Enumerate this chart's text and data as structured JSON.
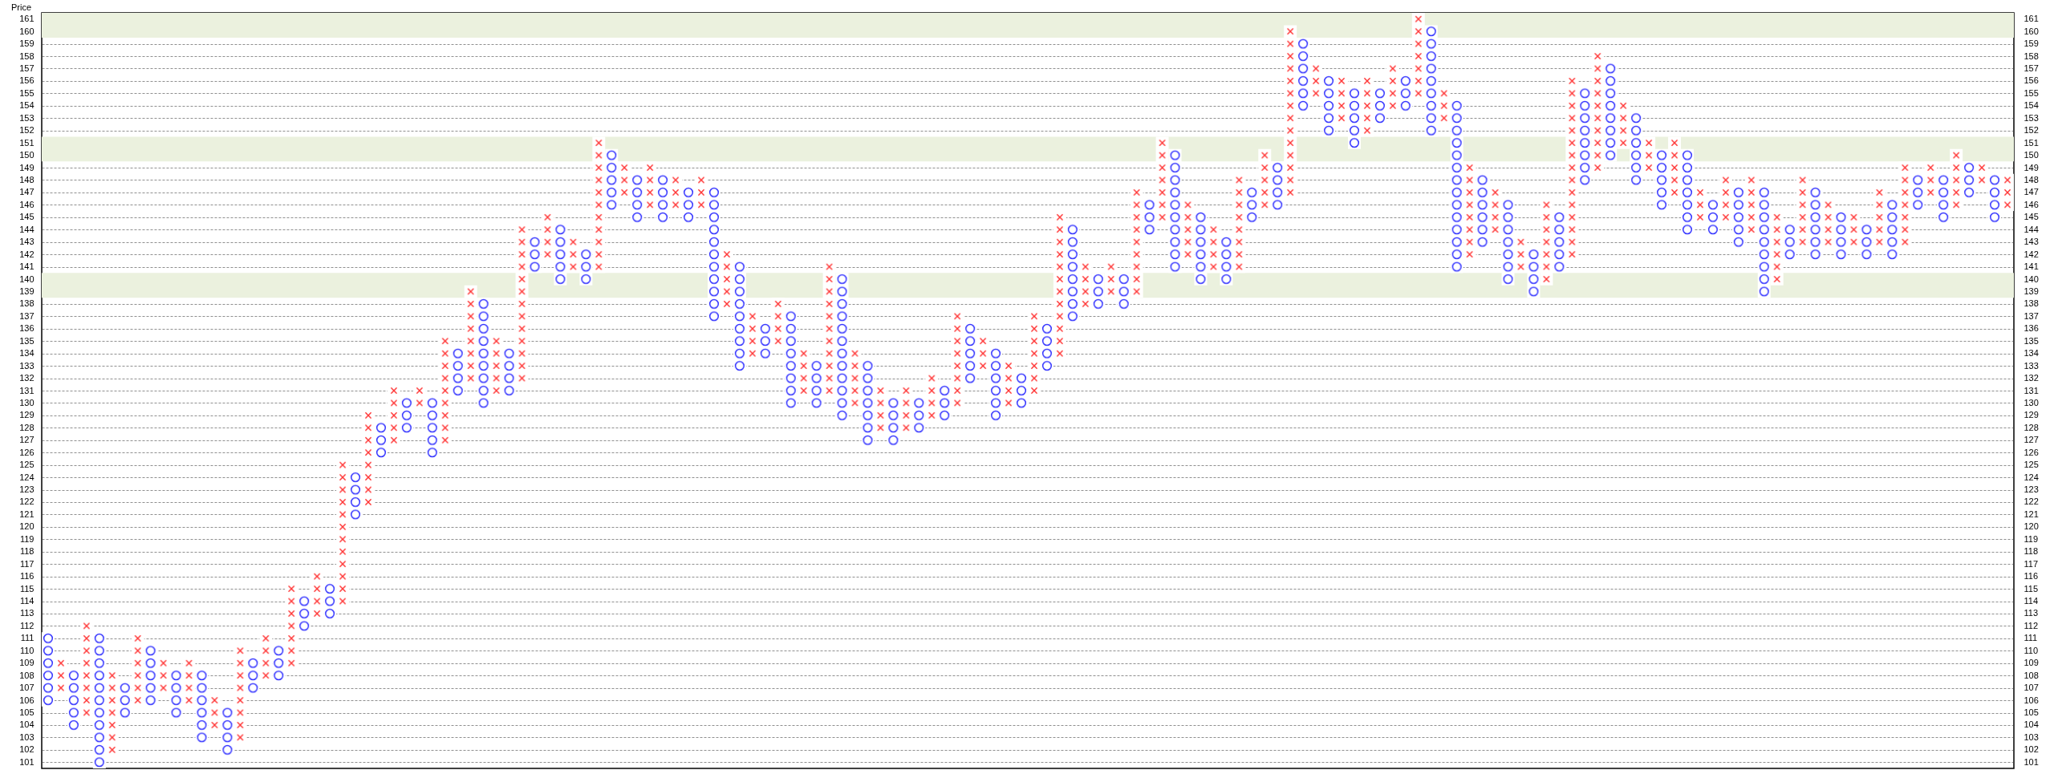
{
  "chart_data": {
    "type": "bar",
    "ylabel": "Price",
    "ylim": [
      100.5,
      161.5
    ],
    "categories": [
      null,
      null,
      null,
      null,
      null,
      null,
      null,
      null,
      null,
      null,
      null,
      null,
      null,
      null,
      null,
      null,
      null,
      null,
      null,
      null,
      null,
      null,
      null,
      null,
      null,
      null,
      null,
      null,
      null,
      null,
      null,
      null,
      null,
      null,
      null,
      null,
      null,
      null,
      null,
      null,
      null,
      null,
      null,
      null,
      null,
      null,
      null,
      null,
      null,
      null,
      null,
      null,
      null,
      null,
      null,
      null,
      null,
      null,
      null,
      null,
      null,
      null,
      null,
      null,
      null,
      null,
      null,
      null,
      null,
      null,
      null,
      null,
      null,
      null,
      null,
      null,
      null,
      null,
      null,
      null,
      null,
      null,
      null,
      null,
      null,
      null,
      null,
      null,
      null,
      null,
      null,
      null,
      null,
      null,
      null,
      null,
      null,
      null,
      null,
      null,
      null,
      null,
      null,
      null,
      null,
      null,
      null,
      null,
      null,
      null,
      null,
      null,
      null,
      null,
      null,
      null,
      null,
      null,
      null,
      null,
      null,
      null,
      null,
      null,
      null,
      null,
      null,
      null,
      null,
      null,
      null,
      null,
      null,
      null,
      null,
      null,
      null,
      null,
      null,
      null,
      null,
      null,
      null,
      null,
      null,
      null,
      null,
      null,
      null,
      null,
      null,
      null,
      null,
      null
    ],
    "yticks": [
      101,
      102,
      103,
      104,
      105,
      106,
      107,
      108,
      109,
      110,
      111,
      112,
      113,
      114,
      115,
      116,
      117,
      118,
      119,
      120,
      121,
      122,
      123,
      124,
      125,
      126,
      127,
      128,
      129,
      130,
      131,
      132,
      133,
      134,
      135,
      136,
      137,
      138,
      139,
      140,
      141,
      142,
      143,
      144,
      145,
      146,
      147,
      148,
      149,
      150,
      151,
      152,
      153,
      154,
      155,
      156,
      157,
      158,
      159,
      160,
      161
    ],
    "y2lim": [
      100.5,
      161.5
    ],
    "y2ticks": [
      101,
      102,
      103,
      104,
      105,
      106,
      107,
      108,
      109,
      110,
      111,
      112,
      113,
      114,
      115,
      116,
      117,
      118,
      119,
      120,
      121,
      122,
      123,
      124,
      125,
      126,
      127,
      128,
      129,
      130,
      131,
      132,
      133,
      134,
      135,
      136,
      137,
      138,
      139,
      140,
      141,
      142,
      143,
      144,
      145,
      146,
      147,
      148,
      149,
      150,
      151,
      152,
      153,
      154,
      155,
      156,
      157,
      158,
      159,
      160,
      161
    ],
    "tick_labels": "y",
    "grid": "y",
    "bands": [
      {
        "axis": "y",
        "from": 159.5,
        "to": 161.5,
        "color": "#ebf1de"
      },
      {
        "axis": "y",
        "from": 149.5,
        "to": 151.5,
        "color": "#ebf1de"
      },
      {
        "axis": "y",
        "from": 138.5,
        "to": 140.5,
        "color": "#ebf1de"
      }
    ],
    "series": [
      {
        "color": "#3333ff",
        "marker": "circle",
        "base": [
          105.5,
          null,
          103.5,
          null,
          100.5,
          null,
          104.5,
          null,
          105.5,
          null,
          104.5,
          null,
          102.5,
          null,
          101.5,
          null,
          106.5,
          null,
          107.5,
          null,
          111.5,
          null,
          112.5,
          null,
          120.5,
          null,
          125.5,
          null,
          127.5,
          null,
          125.5,
          null,
          130.5,
          null,
          129.5,
          null,
          130.5,
          null,
          140.5,
          null,
          139.5,
          null,
          139.5,
          null,
          145.5,
          null,
          144.5,
          null,
          144.5,
          null,
          144.5,
          null,
          136.5,
          null,
          132.5,
          null,
          133.5,
          null,
          129.5,
          null,
          129.5,
          null,
          128.5,
          null,
          126.5,
          null,
          126.5,
          null,
          127.5,
          null,
          128.5,
          null,
          131.5,
          null,
          128.5,
          null,
          129.5,
          null,
          132.5,
          null,
          136.5,
          null,
          137.5,
          null,
          137.5,
          null,
          143.5,
          null,
          140.5,
          null,
          139.5,
          null,
          139.5,
          null,
          144.5,
          null,
          145.5,
          null,
          153.5,
          null,
          151.5,
          null,
          150.5,
          null,
          152.5,
          null,
          153.5,
          null,
          151.5,
          null,
          140.5,
          null,
          142.5,
          null,
          139.5,
          null,
          138.5,
          null,
          140.5,
          null,
          147.5,
          null,
          149.5,
          null,
          147.5,
          null,
          145.5,
          null,
          143.5,
          null,
          143.5,
          null,
          142.5,
          null,
          138.5,
          null,
          141.5,
          null,
          141.5,
          null,
          141.5,
          null,
          141.5,
          null,
          141.5,
          null,
          145.5,
          null,
          144.5,
          null,
          146.5,
          null,
          144.5,
          null
        ],
        "values": [
          6,
          null,
          5,
          null,
          11,
          null,
          3,
          null,
          5,
          null,
          4,
          null,
          6,
          null,
          4,
          null,
          3,
          null,
          3,
          null,
          3,
          null,
          3,
          null,
          4,
          null,
          3,
          null,
          3,
          null,
          5,
          null,
          4,
          null,
          9,
          null,
          4,
          null,
          3,
          null,
          5,
          null,
          3,
          null,
          5,
          null,
          4,
          null,
          4,
          null,
          3,
          null,
          11,
          null,
          9,
          null,
          3,
          null,
          8,
          null,
          4,
          null,
          12,
          null,
          7,
          null,
          4,
          null,
          3,
          null,
          3,
          null,
          5,
          null,
          6,
          null,
          3,
          null,
          4,
          null,
          8,
          null,
          3,
          null,
          3,
          null,
          3,
          null,
          10,
          null,
          6,
          null,
          4,
          null,
          3,
          null,
          4,
          null,
          6,
          null,
          5,
          null,
          5,
          null,
          3,
          null,
          3,
          null,
          9,
          null,
          14,
          null,
          6,
          null,
          7,
          null,
          4,
          null,
          5,
          null,
          8,
          null,
          8,
          null,
          6,
          null,
          5,
          null,
          7,
          null,
          3,
          null,
          5,
          null,
          9,
          null,
          3,
          null,
          6,
          null,
          4,
          null,
          3,
          null,
          5,
          null,
          3,
          null,
          4,
          null,
          3,
          null,
          4,
          null
        ]
      },
      {
        "color": "#ff3333",
        "marker": "cross",
        "base": [
          null,
          106.5,
          null,
          104.5,
          null,
          101.5,
          null,
          105.5,
          null,
          106.5,
          null,
          105.5,
          null,
          103.5,
          null,
          102.5,
          null,
          107.5,
          null,
          108.5,
          null,
          112.5,
          null,
          113.5,
          null,
          121.5,
          null,
          126.5,
          null,
          129.5,
          null,
          126.5,
          null,
          131.5,
          null,
          130.5,
          null,
          131.5,
          null,
          141.5,
          null,
          140.5,
          null,
          140.5,
          null,
          146.5,
          null,
          145.5,
          null,
          145.5,
          null,
          145.5,
          null,
          137.5,
          null,
          133.5,
          null,
          134.5,
          null,
          130.5,
          null,
          130.5,
          null,
          129.5,
          null,
          127.5,
          null,
          127.5,
          null,
          128.5,
          null,
          129.5,
          null,
          132.5,
          null,
          129.5,
          null,
          130.5,
          null,
          133.5,
          null,
          137.5,
          null,
          138.5,
          null,
          138.5,
          null,
          144.5,
          null,
          141.5,
          null,
          140.5,
          null,
          140.5,
          null,
          145.5,
          null,
          146.5,
          null,
          154.5,
          null,
          152.5,
          null,
          151.5,
          null,
          153.5,
          null,
          154.5,
          null,
          152.5,
          null,
          141.5,
          null,
          143.5,
          null,
          140.5,
          null,
          139.5,
          null,
          141.5,
          null,
          148.5,
          null,
          150.5,
          null,
          148.5,
          null,
          146.5,
          null,
          144.5,
          null,
          144.5,
          null,
          143.5,
          null,
          139.5,
          null,
          142.5,
          null,
          142.5,
          null,
          142.5,
          null,
          142.5,
          null,
          142.5,
          null,
          146.5,
          null,
          145.5,
          null,
          147.5,
          null,
          145.5
        ],
        "values": [
          null,
          3,
          null,
          8,
          null,
          7,
          null,
          6,
          null,
          3,
          null,
          4,
          null,
          3,
          null,
          8,
          null,
          4,
          null,
          7,
          null,
          4,
          null,
          12,
          null,
          8,
          null,
          5,
          null,
          2,
          null,
          9,
          null,
          8,
          null,
          5,
          null,
          13,
          null,
          4,
          null,
          3,
          null,
          11,
          null,
          3,
          null,
          4,
          null,
          3,
          null,
          3,
          null,
          5,
          null,
          4,
          null,
          4,
          null,
          4,
          null,
          11,
          null,
          5,
          null,
          4,
          null,
          4,
          null,
          4,
          null,
          8,
          null,
          3,
          null,
          4,
          null,
          7,
          null,
          12,
          null,
          4,
          null,
          3,
          null,
          9,
          null,
          7,
          null,
          5,
          null,
          4,
          null,
          8,
          null,
          5,
          null,
          14,
          null,
          3,
          null,
          4,
          null,
          5,
          null,
          4,
          null,
          7,
          null,
          3,
          null,
          8,
          null,
          4,
          null,
          3,
          null,
          7,
          null,
          15,
          null,
          10,
          null,
          4,
          null,
          3,
          null,
          5,
          null,
          3,
          null,
          4,
          null,
          5,
          null,
          6,
          null,
          6,
          null,
          4,
          null,
          3,
          null,
          5,
          null,
          7,
          null,
          3,
          null,
          5,
          null,
          2,
          null,
          3
        ]
      }
    ]
  }
}
